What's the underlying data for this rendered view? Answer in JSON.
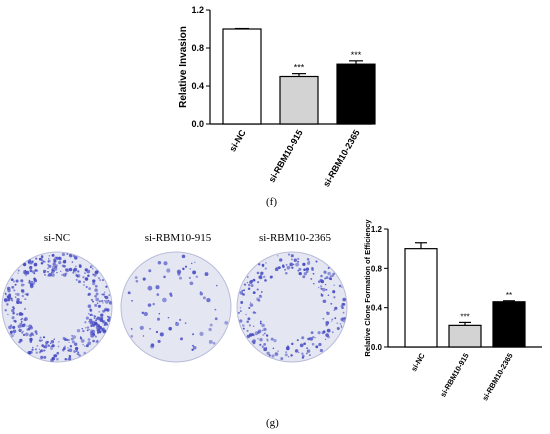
{
  "chart_data": [
    {
      "type": "bar",
      "title": "",
      "xlabel": "",
      "ylabel": "Relative Invasion",
      "ylim": [
        0,
        1.2
      ],
      "yticks": [
        "0.0",
        "0.4",
        "0.8",
        "1.2"
      ],
      "categories": [
        "si-NC",
        "si-RBM10-915",
        "si-RBM10-2365"
      ],
      "values": [
        1.0,
        0.5,
        0.63
      ],
      "errors": [
        0.005,
        0.03,
        0.035
      ],
      "significance": [
        "",
        "***",
        "***"
      ],
      "bar_colors": [
        "#ffffff",
        "#d3d3d3",
        "#000000"
      ],
      "grid": false
    },
    {
      "type": "bar",
      "title": "",
      "xlabel": "",
      "ylabel": "Relative Clone Formation of Efficiency",
      "ylim": [
        0,
        1.2
      ],
      "yticks": [
        "0.0",
        "0.4",
        "0.8",
        "1.2"
      ],
      "categories": [
        "si-NC",
        "si-RBM10-915",
        "si-RBM10-2365"
      ],
      "values": [
        1.0,
        0.22,
        0.46
      ],
      "errors": [
        0.06,
        0.03,
        0.01
      ],
      "significance": [
        "",
        "***",
        "**"
      ],
      "bar_colors": [
        "#ffffff",
        "#d3d3d3",
        "#000000"
      ],
      "grid": false
    }
  ],
  "panels": {
    "f": "(f)",
    "g": "(g)"
  },
  "dishes": [
    {
      "label": "si-NC",
      "density": "high"
    },
    {
      "label": "si-RBM10-915",
      "density": "low"
    },
    {
      "label": "si-RBM10-2365",
      "density": "medium"
    }
  ],
  "colors": {
    "stain": "#4a4fc4",
    "dish_bg": "#e4e6f2"
  }
}
